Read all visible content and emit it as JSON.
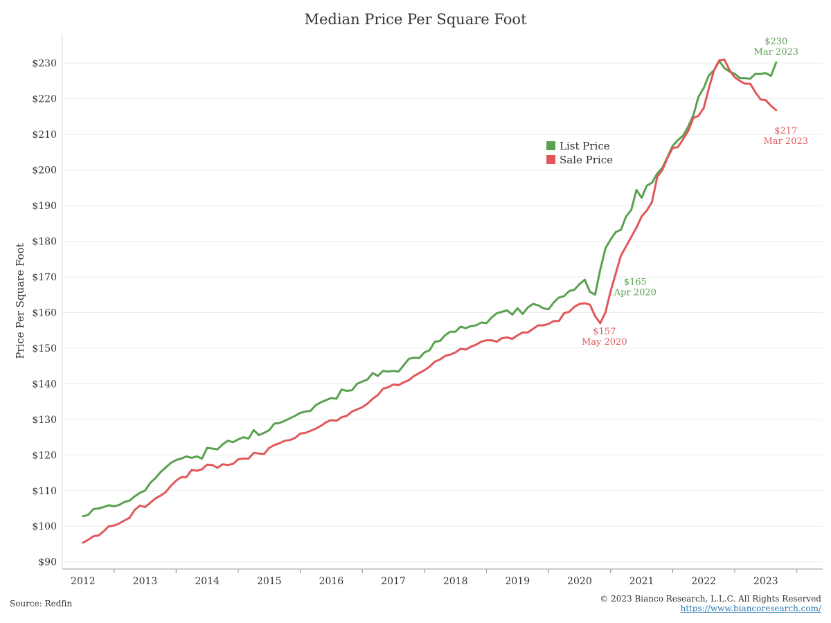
{
  "chart_data": {
    "type": "line",
    "title": "Median Price Per Square Foot",
    "xlabel": "",
    "ylabel": "Price Per Square Foot",
    "ylim": [
      88,
      238
    ],
    "xlim": [
      "2011-09",
      "2023-12"
    ],
    "y_ticks": [
      "$90",
      "$100",
      "$110",
      "$120",
      "$130",
      "$140",
      "$150",
      "$160",
      "$170",
      "$180",
      "$190",
      "$200",
      "$210",
      "$220",
      "$230"
    ],
    "x_ticks": [
      "2012",
      "2013",
      "2014",
      "2015",
      "2016",
      "2017",
      "2018",
      "2019",
      "2020",
      "2021",
      "2022",
      "2023"
    ],
    "grid": "horizontal",
    "legend_placement": "top-center",
    "start": "2012-01",
    "frequency": "monthly",
    "series": [
      {
        "name": "List Price",
        "color": "#59a14f",
        "values": [
          102.8,
          103.2,
          104.8,
          105.0,
          105.4,
          105.9,
          105.6,
          106.0,
          106.8,
          107.2,
          108.4,
          109.4,
          110.0,
          112.2,
          113.5,
          115.2,
          116.5,
          117.8,
          118.6,
          119.0,
          119.6,
          119.2,
          119.6,
          119.0,
          122.0,
          121.8,
          121.6,
          123.0,
          124.0,
          123.6,
          124.4,
          125.0,
          124.6,
          127.0,
          125.6,
          126.2,
          127.0,
          128.8,
          129.0,
          129.6,
          130.3,
          131.0,
          131.8,
          132.2,
          132.4,
          134.0,
          134.8,
          135.4,
          136.0,
          135.8,
          138.4,
          138.0,
          138.2,
          140.0,
          140.6,
          141.2,
          143.0,
          142.2,
          143.6,
          143.4,
          143.6,
          143.4,
          145.2,
          147.0,
          147.3,
          147.2,
          148.8,
          149.4,
          151.8,
          152.0,
          153.6,
          154.6,
          154.6,
          156.0,
          155.6,
          156.2,
          156.4,
          157.2,
          157.0,
          158.6,
          159.8,
          160.2,
          160.6,
          159.4,
          161.2,
          159.6,
          161.4,
          162.4,
          162.0,
          161.2,
          160.9,
          162.8,
          164.2,
          164.6,
          166.0,
          166.4,
          168.0,
          169.2,
          165.8,
          165.0,
          172.0,
          178.0,
          180.5,
          182.6,
          183.2,
          187.0,
          188.8,
          194.4,
          192.2,
          195.6,
          196.4,
          199.0,
          200.6,
          203.6,
          206.8,
          208.4,
          209.6,
          212.2,
          215.4,
          220.6,
          223.0,
          226.6,
          228.0,
          230.6,
          228.6,
          227.6,
          227.0,
          225.8,
          225.8,
          225.6,
          227.0,
          227.0,
          227.2,
          226.4,
          230.2
        ]
      },
      {
        "name": "Sale Price",
        "color": "#e15759",
        "values": [
          95.4,
          96.2,
          97.2,
          97.4,
          98.6,
          100.0,
          100.2,
          100.8,
          101.6,
          102.4,
          104.6,
          105.8,
          105.4,
          106.6,
          107.8,
          108.6,
          109.6,
          111.4,
          112.8,
          113.8,
          113.8,
          115.8,
          115.6,
          116.0,
          117.3,
          117.2,
          116.4,
          117.4,
          117.2,
          117.5,
          118.8,
          119.0,
          119.0,
          120.6,
          120.4,
          120.3,
          122.0,
          122.8,
          123.3,
          124.0,
          124.2,
          124.8,
          126.0,
          126.2,
          126.8,
          127.4,
          128.2,
          129.2,
          129.8,
          129.6,
          130.6,
          131.0,
          132.2,
          132.8,
          133.4,
          134.4,
          135.8,
          136.8,
          138.6,
          139.0,
          139.8,
          139.6,
          140.4,
          141.0,
          142.2,
          143.0,
          143.8,
          144.8,
          146.2,
          146.8,
          147.8,
          148.2,
          148.8,
          149.8,
          149.6,
          150.4,
          151.0,
          151.8,
          152.2,
          152.2,
          151.8,
          152.8,
          153.0,
          152.6,
          153.6,
          154.4,
          154.4,
          155.4,
          156.4,
          156.4,
          156.8,
          157.6,
          157.6,
          159.8,
          160.2,
          161.6,
          162.4,
          162.6,
          162.2,
          159.0,
          157.0,
          160.0,
          166.0,
          171.0,
          176.0,
          178.6,
          181.2,
          183.8,
          187.0,
          188.6,
          191.0,
          198.0,
          200.0,
          203.4,
          206.2,
          206.4,
          208.6,
          211.0,
          214.6,
          215.2,
          217.4,
          223.0,
          228.0,
          230.8,
          231.0,
          228.0,
          226.0,
          225.0,
          224.2,
          224.2,
          221.8,
          219.8,
          219.6,
          218.0,
          216.8
        ]
      }
    ],
    "annotations": [
      {
        "series": "List Price",
        "value_label": "$230",
        "date_label": "Mar 2023",
        "color": "#59a14f"
      },
      {
        "series": "Sale Price",
        "value_label": "$217",
        "date_label": "Mar 2023",
        "color": "#e15759"
      },
      {
        "series": "List Price",
        "value_label": "$165",
        "date_label": "Apr 2020",
        "color": "#59a14f"
      },
      {
        "series": "Sale Price",
        "value_label": "$157",
        "date_label": "May 2020",
        "color": "#e15759"
      }
    ]
  },
  "footer": {
    "source": "Source: Redfin",
    "copyright": "© 2023 Bianco Research, L.L.C. All Rights Reserved",
    "url": "https://www.biancoresearch.com/"
  }
}
